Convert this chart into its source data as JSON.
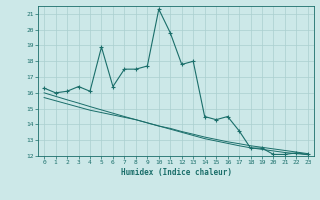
{
  "xlabel": "Humidex (Indice chaleur)",
  "bg_color": "#cce8e8",
  "line_color": "#1a6e6a",
  "grid_color": "#aacfcf",
  "xlim": [
    -0.5,
    23.5
  ],
  "ylim": [
    12,
    21.5
  ],
  "yticks": [
    12,
    13,
    14,
    15,
    16,
    17,
    18,
    19,
    20,
    21
  ],
  "xticks": [
    0,
    1,
    2,
    3,
    4,
    5,
    6,
    7,
    8,
    9,
    10,
    11,
    12,
    13,
    14,
    15,
    16,
    17,
    18,
    19,
    20,
    21,
    22,
    23
  ],
  "series1_x": [
    0,
    1,
    2,
    3,
    4,
    5,
    6,
    7,
    8,
    9,
    10,
    11,
    12,
    13,
    14,
    15,
    16,
    17,
    18,
    19,
    20,
    21,
    22,
    23
  ],
  "series1_y": [
    16.3,
    16.0,
    16.1,
    16.4,
    16.1,
    18.9,
    16.4,
    17.5,
    17.5,
    17.7,
    21.3,
    19.8,
    17.8,
    18.0,
    14.5,
    14.3,
    14.5,
    13.6,
    12.5,
    12.5,
    12.1,
    12.1,
    12.2,
    12.1
  ],
  "series2_x": [
    0,
    1,
    2,
    3,
    4,
    5,
    6,
    7,
    8,
    9,
    10,
    11,
    12,
    13,
    14,
    15,
    16,
    17,
    18,
    19,
    20,
    21,
    22,
    23
  ],
  "series2_y": [
    15.7,
    15.5,
    15.3,
    15.1,
    14.9,
    14.75,
    14.6,
    14.45,
    14.3,
    14.1,
    13.9,
    13.75,
    13.55,
    13.38,
    13.2,
    13.05,
    12.9,
    12.78,
    12.65,
    12.55,
    12.45,
    12.35,
    12.25,
    12.15
  ],
  "series3_x": [
    0,
    1,
    2,
    3,
    4,
    5,
    6,
    7,
    8,
    9,
    10,
    11,
    12,
    13,
    14,
    15,
    16,
    17,
    18,
    19,
    20,
    21,
    22,
    23
  ],
  "series3_y": [
    16.0,
    15.78,
    15.56,
    15.35,
    15.13,
    14.92,
    14.71,
    14.5,
    14.3,
    14.1,
    13.9,
    13.7,
    13.5,
    13.3,
    13.1,
    12.95,
    12.8,
    12.65,
    12.52,
    12.42,
    12.32,
    12.22,
    12.15,
    12.08
  ]
}
